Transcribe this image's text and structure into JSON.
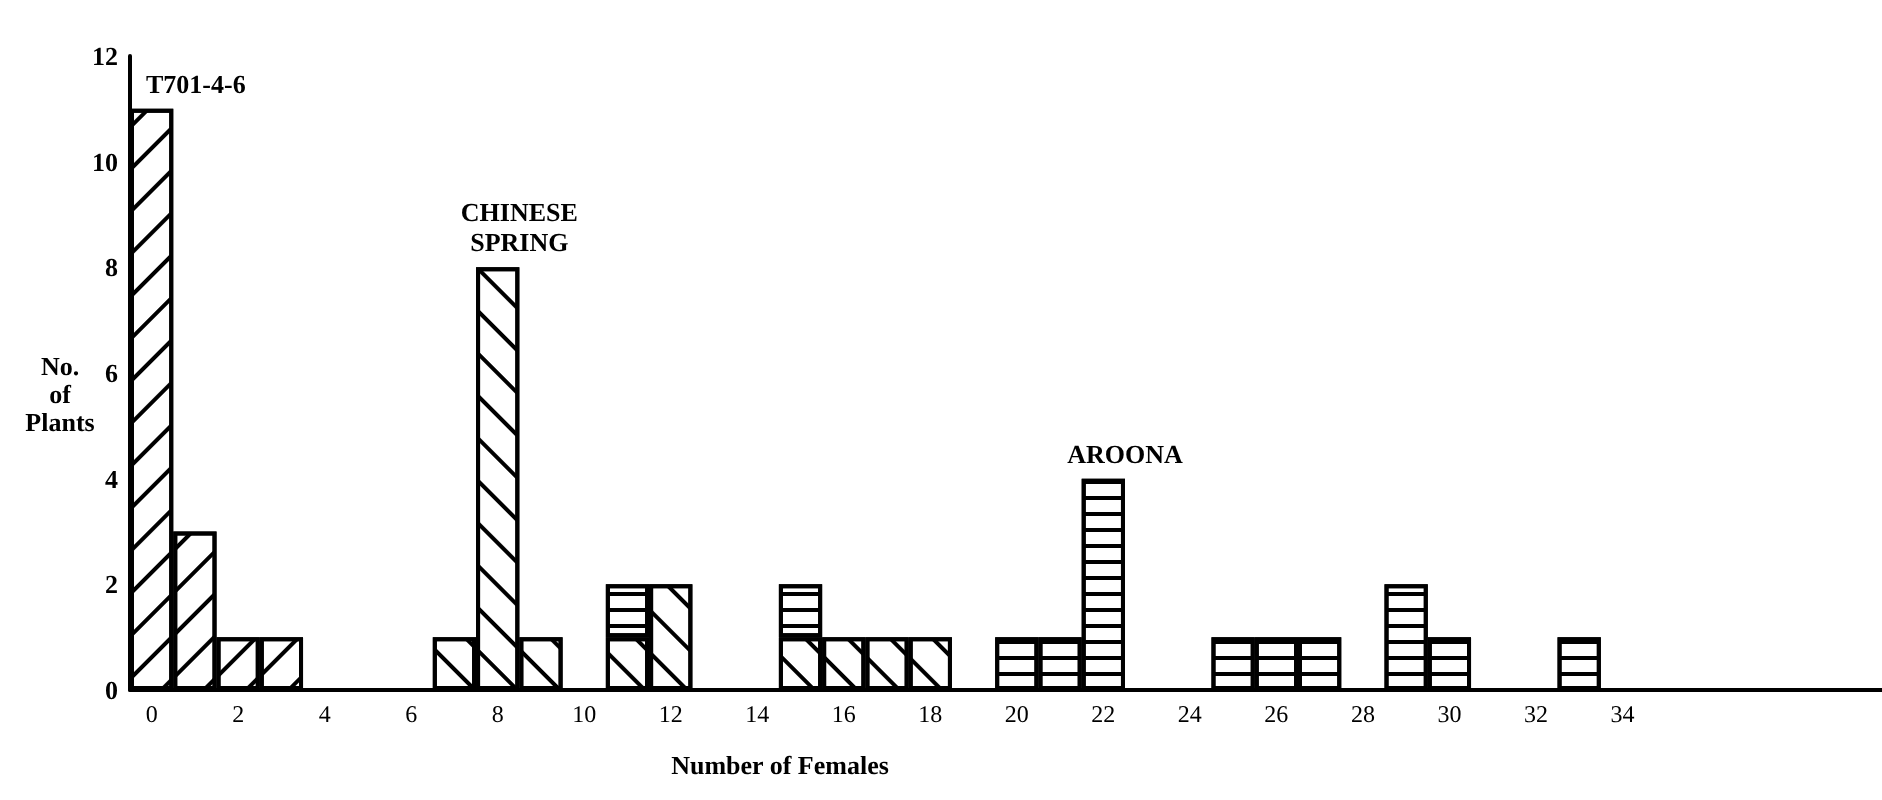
{
  "chart_data": {
    "type": "bar",
    "stacked": true,
    "xlabel": "Number of Females",
    "ylabel": "No. of Plants",
    "x": [
      0,
      1,
      2,
      3,
      7,
      8,
      9,
      11,
      12,
      15,
      16,
      17,
      18,
      20,
      21,
      22,
      25,
      26,
      27,
      29,
      30,
      33
    ],
    "xlim": [
      -0.5,
      40
    ],
    "xticks": [
      0,
      2,
      4,
      6,
      8,
      10,
      12,
      14,
      16,
      18,
      20,
      22,
      24,
      26,
      28,
      30,
      32,
      34
    ],
    "ylim": [
      0,
      12
    ],
    "yticks": [
      0,
      2,
      4,
      6,
      8,
      10,
      12
    ],
    "series": [
      {
        "name": "T701-4-6",
        "color": "#ffffff",
        "values": [
          11,
          3,
          1,
          1,
          null,
          null,
          null,
          null,
          null,
          null,
          null,
          null,
          null,
          null,
          null,
          null,
          null,
          null,
          null,
          null,
          null,
          null
        ]
      },
      {
        "name": "CHINESE SPRING",
        "color": "#ffffff",
        "values": [
          null,
          null,
          null,
          null,
          1,
          8,
          1,
          1,
          2,
          1,
          1,
          1,
          1,
          null,
          null,
          null,
          null,
          null,
          null,
          null,
          null,
          null
        ]
      },
      {
        "name": "AROONA",
        "color": "#ffffff",
        "values": [
          null,
          null,
          null,
          null,
          null,
          null,
          null,
          1,
          null,
          1,
          null,
          null,
          null,
          1,
          1,
          4,
          1,
          1,
          1,
          2,
          1,
          1
        ]
      }
    ]
  }
}
